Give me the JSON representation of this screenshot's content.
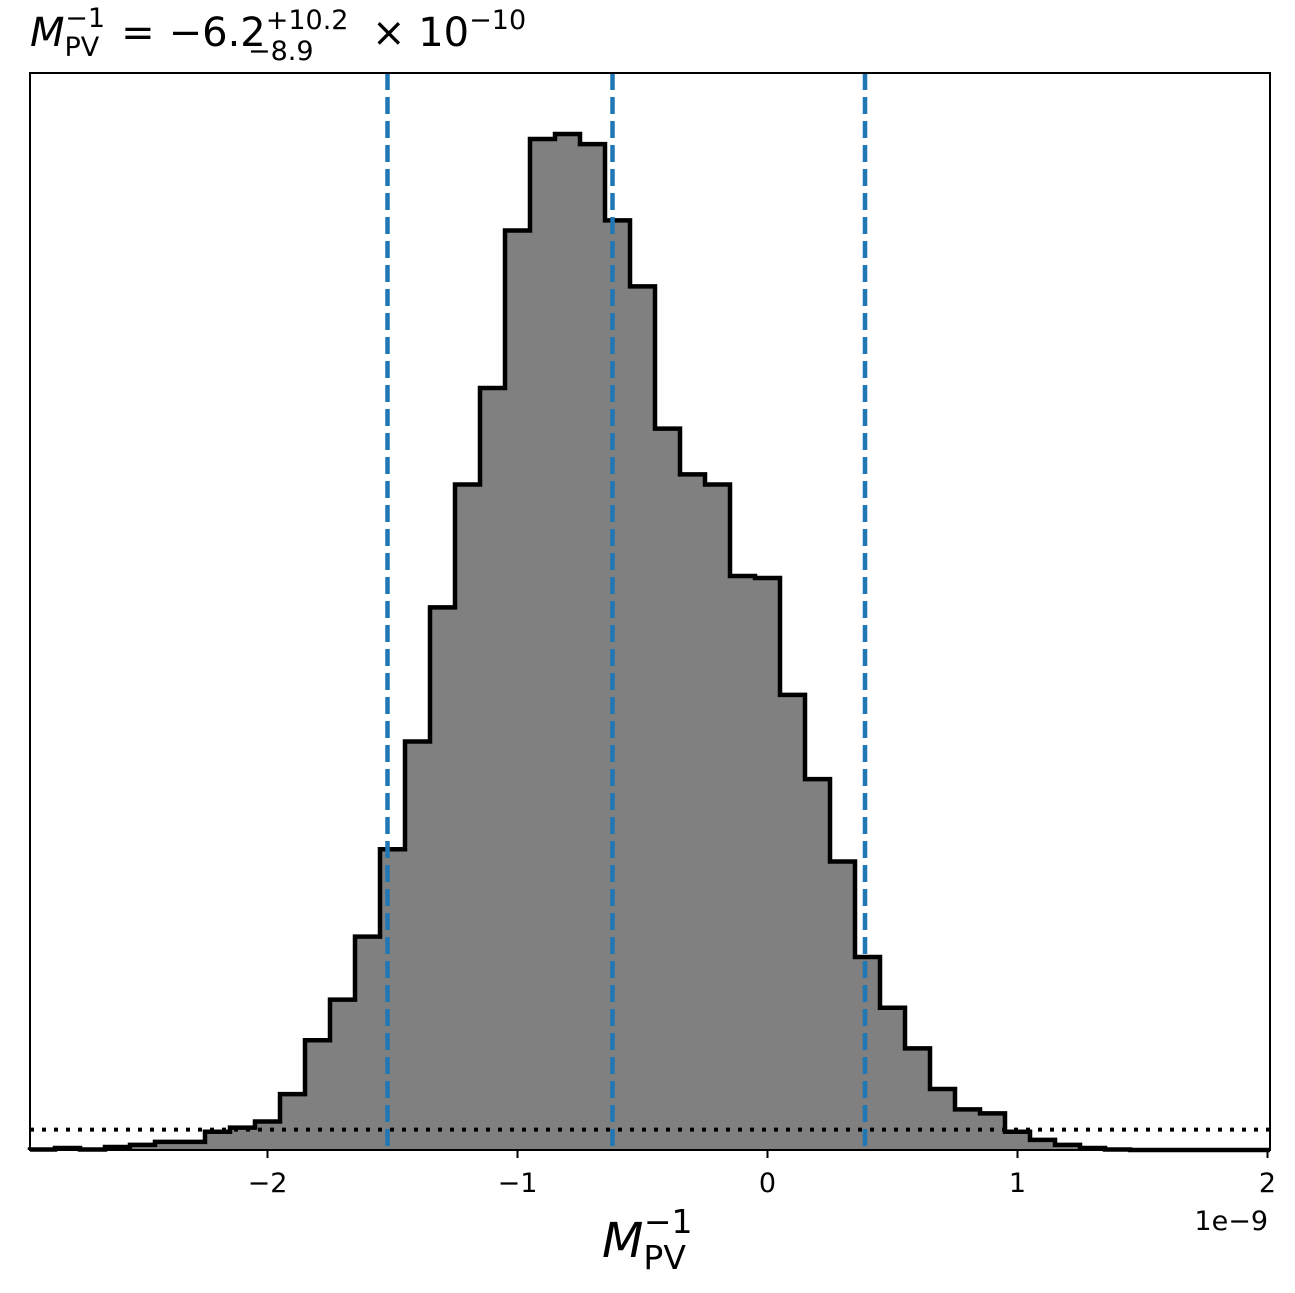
{
  "chart_data": {
    "type": "histogram",
    "title": {
      "symbol": "M",
      "symbol_subscript": "PV",
      "symbol_superscript": "−1",
      "equals": "=",
      "median": "−6.2",
      "upper": "+10.2",
      "lower": "−8.9",
      "scale_base": "× 10",
      "scale_exponent": "−10"
    },
    "xlabel": {
      "symbol": "M",
      "subscript": "PV",
      "superscript": "−1"
    },
    "offset_text": "1e−9",
    "xlim": [
      -2.95,
      2.01
    ],
    "xticks": [
      {
        "value": -2,
        "label": "−2"
      },
      {
        "value": -1,
        "label": "−1"
      },
      {
        "value": 0,
        "label": "0"
      },
      {
        "value": 1,
        "label": "1"
      },
      {
        "value": 2,
        "label": "2"
      }
    ],
    "x_units_note": "x values in units of 1e-9",
    "ylim": [
      0,
      1.06
    ],
    "y_axis_ticks": "none",
    "bins": {
      "edges": [
        -2.95,
        -2.85,
        -2.75,
        -2.65,
        -2.55,
        -2.45,
        -2.35,
        -2.25,
        -2.15,
        -2.05,
        -1.95,
        -1.85,
        -1.75,
        -1.65,
        -1.55,
        -1.45,
        -1.35,
        -1.25,
        -1.15,
        -1.05,
        -0.95,
        -0.85,
        -0.75,
        -0.65,
        -0.55,
        -0.45,
        -0.35,
        -0.25,
        -0.15,
        -0.05,
        0.05,
        0.15,
        0.25,
        0.35,
        0.45,
        0.55,
        0.65,
        0.75,
        0.85,
        0.95,
        1.05,
        1.15,
        1.25,
        1.35,
        1.45,
        1.55,
        1.65,
        1.75,
        1.85,
        1.95,
        2.01
      ],
      "heights": [
        0.0005,
        0.002,
        0.0005,
        0.003,
        0.005,
        0.008,
        0.008,
        0.018,
        0.022,
        0.028,
        0.055,
        0.108,
        0.148,
        0.21,
        0.296,
        0.402,
        0.534,
        0.655,
        0.75,
        0.905,
        0.995,
        1.0,
        0.99,
        0.915,
        0.85,
        0.71,
        0.665,
        0.655,
        0.565,
        0.563,
        0.448,
        0.365,
        0.284,
        0.19,
        0.14,
        0.1,
        0.06,
        0.04,
        0.036,
        0.018,
        0.01,
        0.005,
        0.002,
        0.0005,
        0,
        0,
        0,
        0,
        0,
        0
      ]
    },
    "fill_color": "#808080",
    "edge_color": "#000000",
    "quantile_lines": {
      "values": [
        -1.52,
        -0.62,
        0.39
      ],
      "color": "#1f77b4",
      "style": "dashed"
    },
    "reference_line": {
      "y": 0.02,
      "color": "#000000",
      "style": "dotted"
    },
    "grid": false,
    "legend": "none"
  }
}
